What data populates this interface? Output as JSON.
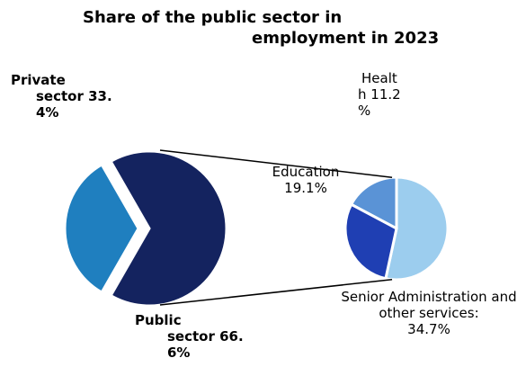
{
  "chart_data": {
    "type": "pie",
    "title": "Share of the public sector in employment in 2023",
    "title_lines": [
      "Share of the public sector in",
      "employment in 2023"
    ],
    "main_pie": {
      "slices": [
        {
          "name": "Private sector",
          "value": 33.4,
          "color": "#1f7fbf",
          "label_lines": [
            "Private",
            "sector 33.",
            "4%"
          ]
        },
        {
          "name": "Public sector",
          "value": 66.6,
          "color": "#14235f",
          "label_lines": [
            "Public",
            "sector 66.",
            "6%"
          ]
        }
      ]
    },
    "sub_pie": {
      "slices": [
        {
          "name": "Health",
          "value": 11.2,
          "color": "#5a93d6",
          "label_lines": [
            "Healt",
            "h 11.2",
            "%"
          ]
        },
        {
          "name": "Education",
          "value": 19.1,
          "color": "#1f3fb3",
          "label_lines": [
            "Education",
            "19.1%"
          ]
        },
        {
          "name": "Senior Administration and other services",
          "value": 34.7,
          "color": "#9ccdee",
          "label_lines": [
            "Senior Administration and",
            "other services:",
            "34.7%"
          ]
        }
      ]
    }
  }
}
